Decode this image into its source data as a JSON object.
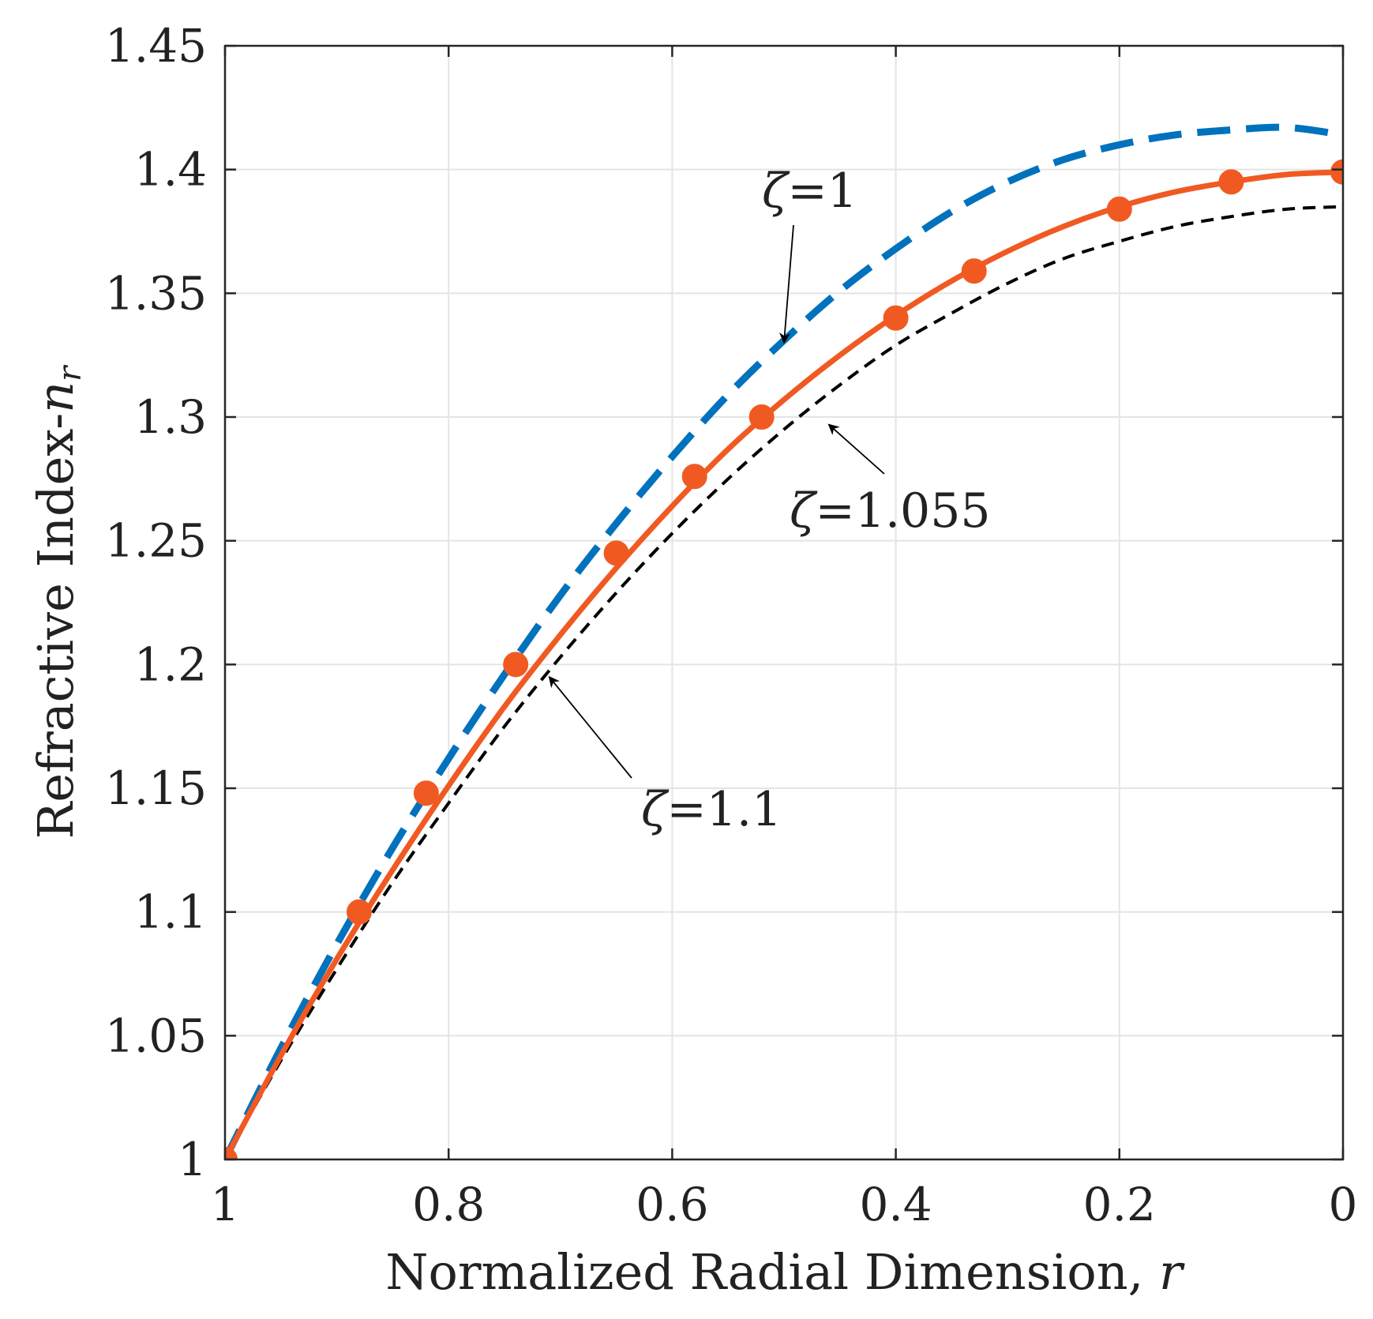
{
  "chart_data": {
    "type": "line",
    "title": "",
    "xlabel": "Normalized Radial Dimension, ",
    "xlabel_var": "r",
    "ylabel": "Refractive Index-",
    "ylabel_var": "n",
    "ylabel_sub": "r",
    "xlim": [
      1,
      0
    ],
    "x_reversed": true,
    "ylim": [
      1,
      1.45
    ],
    "grid": true,
    "xticks": [
      1,
      0.8,
      0.6,
      0.4,
      0.2,
      0
    ],
    "xtick_labels": [
      "1",
      "0.8",
      "0.6",
      "0.4",
      "0.2",
      "0"
    ],
    "yticks": [
      1,
      1.05,
      1.1,
      1.15,
      1.2,
      1.25,
      1.3,
      1.35,
      1.4,
      1.45
    ],
    "ytick_labels": [
      "1",
      "1.05",
      "1.1",
      "1.15",
      "1.2",
      "1.25",
      "1.3",
      "1.35",
      "1.4",
      "1.45"
    ],
    "series": [
      {
        "name": "ζ=1",
        "style": "dashed-thick",
        "color": "#0072BD",
        "x": [
          1,
          0.95,
          0.9,
          0.85,
          0.8,
          0.75,
          0.7,
          0.65,
          0.6,
          0.55,
          0.5,
          0.45,
          0.4,
          0.35,
          0.3,
          0.25,
          0.2,
          0.15,
          0.1,
          0.05,
          0
        ],
        "y": [
          1.0,
          1.045,
          1.087,
          1.126,
          1.162,
          1.196,
          1.228,
          1.257,
          1.284,
          1.309,
          1.331,
          1.351,
          1.368,
          1.383,
          1.395,
          1.404,
          1.41,
          1.414,
          1.416,
          1.417,
          1.414
        ]
      },
      {
        "name": "ζ=1.055",
        "style": "solid-markers",
        "color": "#F05A22",
        "x": [
          1,
          0.95,
          0.9,
          0.85,
          0.8,
          0.75,
          0.7,
          0.65,
          0.6,
          0.55,
          0.5,
          0.45,
          0.4,
          0.35,
          0.3,
          0.25,
          0.2,
          0.15,
          0.1,
          0.05,
          0
        ],
        "y": [
          1.0,
          1.042,
          1.081,
          1.117,
          1.151,
          1.183,
          1.212,
          1.239,
          1.264,
          1.287,
          1.307,
          1.325,
          1.341,
          1.355,
          1.367,
          1.377,
          1.385,
          1.391,
          1.395,
          1.398,
          1.399
        ],
        "markers_x": [
          1,
          0.88,
          0.82,
          0.74,
          0.65,
          0.58,
          0.52,
          0.4,
          0.33,
          0.2,
          0.1,
          0
        ],
        "markers_y": [
          1.0,
          1.1,
          1.148,
          1.2,
          1.245,
          1.276,
          1.3,
          1.34,
          1.359,
          1.384,
          1.395,
          1.399
        ]
      },
      {
        "name": "ζ=1.1",
        "style": "dashed-thin",
        "color": "#000000",
        "x": [
          1,
          0.95,
          0.9,
          0.85,
          0.8,
          0.75,
          0.7,
          0.65,
          0.6,
          0.55,
          0.5,
          0.45,
          0.4,
          0.35,
          0.3,
          0.25,
          0.2,
          0.15,
          0.1,
          0.05,
          0
        ],
        "y": [
          1.0,
          1.04,
          1.077,
          1.112,
          1.144,
          1.175,
          1.203,
          1.229,
          1.253,
          1.275,
          1.295,
          1.313,
          1.329,
          1.342,
          1.354,
          1.364,
          1.371,
          1.377,
          1.381,
          1.384,
          1.385
        ]
      }
    ],
    "annotations": [
      {
        "sym": "ζ",
        "text": "=1",
        "arrow_to": [
          0.5,
          1.33
        ]
      },
      {
        "sym": "ζ",
        "text": "=1.055",
        "arrow_to": [
          0.46,
          1.297
        ]
      },
      {
        "sym": "ζ",
        "text": "=1.1",
        "arrow_to": [
          0.71,
          1.195
        ]
      }
    ]
  }
}
